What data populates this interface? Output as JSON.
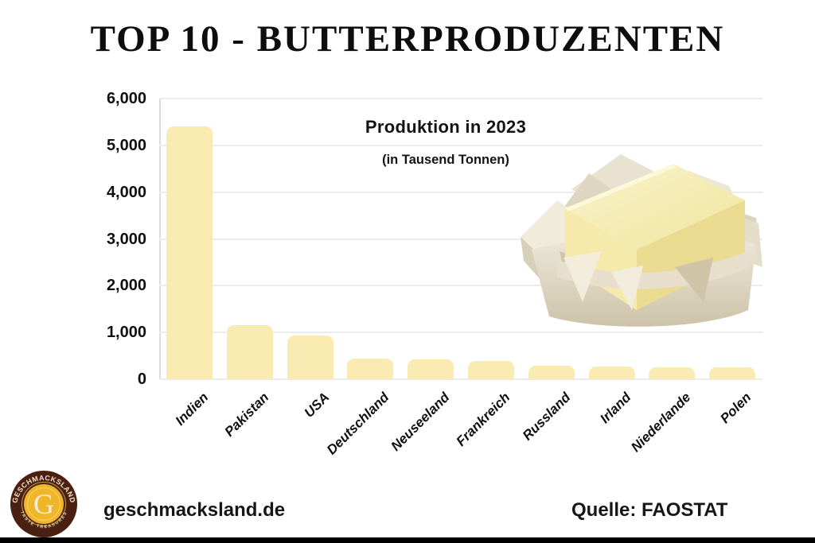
{
  "header": {
    "title": "TOP 10 - BUTTERPRODUZENTEN"
  },
  "chart_data": {
    "type": "bar",
    "title": "Produktion in 2023",
    "subtitle": "(in Tausend Tonnen)",
    "categories": [
      "Indien",
      "Pakistan",
      "USA",
      "Deutschland",
      "Neuseeland",
      "Frankreich",
      "Russland",
      "Irland",
      "Niederlande",
      "Polen"
    ],
    "values": [
      5400,
      1150,
      940,
      450,
      430,
      390,
      290,
      280,
      255,
      250
    ],
    "xlabel": "",
    "ylabel": "",
    "ylim": [
      0,
      6000
    ],
    "y_tick_step": 1000,
    "y_tick_labels": [
      "0",
      "1,000",
      "2,000",
      "3,000",
      "4,000",
      "5,000",
      "6,000"
    ],
    "grid": true,
    "legend": false,
    "bar_color": "#FAEBB3",
    "gridline_color": "#ECECEC"
  },
  "illustration": {
    "name": "butter-block-on-wrapping-paper"
  },
  "logo": {
    "brand": "GESCHMACKSLAND",
    "tagline": "TASTE TREASURES",
    "monogram": "G",
    "colors": {
      "ring": "#4A2013",
      "center": "#EFB62A"
    }
  },
  "footer": {
    "website": "geschmacksland.de",
    "source": "Quelle: FAOSTAT"
  }
}
